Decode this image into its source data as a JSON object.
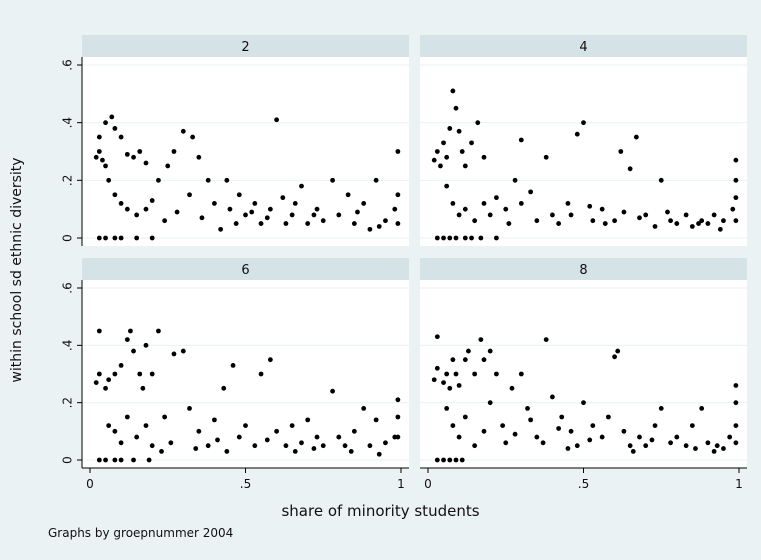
{
  "chart_data": {
    "type": "scatter",
    "xlabel": "share of minority students",
    "ylabel": "within school sd ethnic diversity",
    "note": "Graphs by groepnummer 2004",
    "xlim": [
      0,
      1
    ],
    "ylim": [
      0,
      0.6
    ],
    "xticks": [
      "0",
      ".5",
      "1"
    ],
    "yticks": [
      "0",
      ".2",
      ".4",
      ".6"
    ],
    "grid": true,
    "colors": {
      "background": "#eaf2f3",
      "panel": "#ffffff",
      "strip": "#d5e2e6",
      "marker": "#000000",
      "grid": "#eaf2f3"
    },
    "panels": [
      {
        "label": "2",
        "points": [
          [
            0.02,
            0.28
          ],
          [
            0.03,
            0.3
          ],
          [
            0.04,
            0.27
          ],
          [
            0.05,
            0.25
          ],
          [
            0.03,
            0.35
          ],
          [
            0.05,
            0.4
          ],
          [
            0.07,
            0.42
          ],
          [
            0.08,
            0.38
          ],
          [
            0.1,
            0.35
          ],
          [
            0.12,
            0.29
          ],
          [
            0.14,
            0.28
          ],
          [
            0.16,
            0.3
          ],
          [
            0.18,
            0.26
          ],
          [
            0.06,
            0.2
          ],
          [
            0.08,
            0.15
          ],
          [
            0.1,
            0.12
          ],
          [
            0.12,
            0.1
          ],
          [
            0.15,
            0.08
          ],
          [
            0.18,
            0.1
          ],
          [
            0.2,
            0.13
          ],
          [
            0.22,
            0.2
          ],
          [
            0.25,
            0.25
          ],
          [
            0.27,
            0.3
          ],
          [
            0.3,
            0.37
          ],
          [
            0.33,
            0.35
          ],
          [
            0.35,
            0.28
          ],
          [
            0.38,
            0.2
          ],
          [
            0.4,
            0.12
          ],
          [
            0.45,
            0.1
          ],
          [
            0.48,
            0.15
          ],
          [
            0.5,
            0.08
          ],
          [
            0.53,
            0.12
          ],
          [
            0.55,
            0.05
          ],
          [
            0.58,
            0.1
          ],
          [
            0.6,
            0.41
          ],
          [
            0.62,
            0.14
          ],
          [
            0.65,
            0.08
          ],
          [
            0.68,
            0.18
          ],
          [
            0.7,
            0.05
          ],
          [
            0.73,
            0.1
          ],
          [
            0.75,
            0.06
          ],
          [
            0.78,
            0.2
          ],
          [
            0.8,
            0.08
          ],
          [
            0.83,
            0.15
          ],
          [
            0.85,
            0.05
          ],
          [
            0.88,
            0.12
          ],
          [
            0.9,
            0.03
          ],
          [
            0.92,
            0.2
          ],
          [
            0.95,
            0.06
          ],
          [
            0.98,
            0.1
          ],
          [
            0.99,
            0.3
          ],
          [
            0.99,
            0.15
          ],
          [
            0.99,
            0.05
          ],
          [
            0.03,
            0.0
          ],
          [
            0.05,
            0.0
          ],
          [
            0.08,
            0.0
          ],
          [
            0.1,
            0.0
          ],
          [
            0.15,
            0.0
          ],
          [
            0.2,
            0.0
          ],
          [
            0.42,
            0.03
          ],
          [
            0.47,
            0.05
          ],
          [
            0.52,
            0.09
          ],
          [
            0.57,
            0.07
          ],
          [
            0.63,
            0.05
          ],
          [
            0.24,
            0.06
          ],
          [
            0.28,
            0.09
          ],
          [
            0.32,
            0.15
          ],
          [
            0.36,
            0.07
          ],
          [
            0.44,
            0.2
          ],
          [
            0.66,
            0.12
          ],
          [
            0.72,
            0.08
          ],
          [
            0.86,
            0.09
          ],
          [
            0.93,
            0.04
          ]
        ]
      },
      {
        "label": "4",
        "points": [
          [
            0.02,
            0.27
          ],
          [
            0.03,
            0.3
          ],
          [
            0.04,
            0.25
          ],
          [
            0.05,
            0.33
          ],
          [
            0.06,
            0.28
          ],
          [
            0.07,
            0.38
          ],
          [
            0.08,
            0.51
          ],
          [
            0.09,
            0.45
          ],
          [
            0.1,
            0.37
          ],
          [
            0.11,
            0.3
          ],
          [
            0.12,
            0.25
          ],
          [
            0.14,
            0.33
          ],
          [
            0.16,
            0.4
          ],
          [
            0.18,
            0.28
          ],
          [
            0.06,
            0.18
          ],
          [
            0.08,
            0.12
          ],
          [
            0.1,
            0.08
          ],
          [
            0.12,
            0.1
          ],
          [
            0.15,
            0.06
          ],
          [
            0.18,
            0.12
          ],
          [
            0.2,
            0.08
          ],
          [
            0.22,
            0.14
          ],
          [
            0.25,
            0.1
          ],
          [
            0.28,
            0.2
          ],
          [
            0.3,
            0.34
          ],
          [
            0.33,
            0.16
          ],
          [
            0.35,
            0.06
          ],
          [
            0.38,
            0.28
          ],
          [
            0.4,
            0.08
          ],
          [
            0.45,
            0.12
          ],
          [
            0.48,
            0.36
          ],
          [
            0.5,
            0.4
          ],
          [
            0.53,
            0.06
          ],
          [
            0.56,
            0.1
          ],
          [
            0.6,
            0.06
          ],
          [
            0.62,
            0.3
          ],
          [
            0.65,
            0.24
          ],
          [
            0.67,
            0.35
          ],
          [
            0.7,
            0.08
          ],
          [
            0.73,
            0.04
          ],
          [
            0.75,
            0.2
          ],
          [
            0.78,
            0.06
          ],
          [
            0.8,
            0.05
          ],
          [
            0.83,
            0.08
          ],
          [
            0.85,
            0.04
          ],
          [
            0.88,
            0.06
          ],
          [
            0.9,
            0.05
          ],
          [
            0.92,
            0.08
          ],
          [
            0.95,
            0.06
          ],
          [
            0.98,
            0.1
          ],
          [
            0.99,
            0.27
          ],
          [
            0.99,
            0.2
          ],
          [
            0.99,
            0.14
          ],
          [
            0.99,
            0.06
          ],
          [
            0.03,
            0.0
          ],
          [
            0.05,
            0.0
          ],
          [
            0.07,
            0.0
          ],
          [
            0.09,
            0.0
          ],
          [
            0.12,
            0.0
          ],
          [
            0.14,
            0.0
          ],
          [
            0.17,
            0.0
          ],
          [
            0.22,
            0.0
          ],
          [
            0.26,
            0.05
          ],
          [
            0.3,
            0.12
          ],
          [
            0.42,
            0.05
          ],
          [
            0.46,
            0.08
          ],
          [
            0.52,
            0.11
          ],
          [
            0.57,
            0.05
          ],
          [
            0.63,
            0.09
          ],
          [
            0.68,
            0.07
          ],
          [
            0.77,
            0.09
          ],
          [
            0.87,
            0.05
          ],
          [
            0.94,
            0.03
          ]
        ]
      },
      {
        "label": "6",
        "points": [
          [
            0.02,
            0.27
          ],
          [
            0.03,
            0.3
          ],
          [
            0.03,
            0.45
          ],
          [
            0.05,
            0.25
          ],
          [
            0.06,
            0.28
          ],
          [
            0.08,
            0.3
          ],
          [
            0.1,
            0.33
          ],
          [
            0.12,
            0.42
          ],
          [
            0.13,
            0.45
          ],
          [
            0.14,
            0.38
          ],
          [
            0.16,
            0.3
          ],
          [
            0.17,
            0.25
          ],
          [
            0.18,
            0.4
          ],
          [
            0.2,
            0.3
          ],
          [
            0.22,
            0.45
          ],
          [
            0.06,
            0.12
          ],
          [
            0.08,
            0.1
          ],
          [
            0.1,
            0.06
          ],
          [
            0.12,
            0.15
          ],
          [
            0.15,
            0.08
          ],
          [
            0.18,
            0.12
          ],
          [
            0.2,
            0.05
          ],
          [
            0.24,
            0.15
          ],
          [
            0.27,
            0.37
          ],
          [
            0.3,
            0.38
          ],
          [
            0.32,
            0.18
          ],
          [
            0.35,
            0.1
          ],
          [
            0.38,
            0.05
          ],
          [
            0.4,
            0.14
          ],
          [
            0.43,
            0.25
          ],
          [
            0.46,
            0.33
          ],
          [
            0.48,
            0.08
          ],
          [
            0.5,
            0.12
          ],
          [
            0.53,
            0.05
          ],
          [
            0.55,
            0.3
          ],
          [
            0.58,
            0.35
          ],
          [
            0.6,
            0.1
          ],
          [
            0.63,
            0.05
          ],
          [
            0.65,
            0.12
          ],
          [
            0.68,
            0.06
          ],
          [
            0.7,
            0.14
          ],
          [
            0.73,
            0.08
          ],
          [
            0.75,
            0.05
          ],
          [
            0.78,
            0.24
          ],
          [
            0.8,
            0.08
          ],
          [
            0.82,
            0.05
          ],
          [
            0.85,
            0.1
          ],
          [
            0.88,
            0.18
          ],
          [
            0.9,
            0.05
          ],
          [
            0.92,
            0.14
          ],
          [
            0.95,
            0.06
          ],
          [
            0.98,
            0.08
          ],
          [
            0.99,
            0.21
          ],
          [
            0.99,
            0.15
          ],
          [
            0.99,
            0.08
          ],
          [
            0.03,
            0.0
          ],
          [
            0.05,
            0.0
          ],
          [
            0.08,
            0.0
          ],
          [
            0.1,
            0.0
          ],
          [
            0.14,
            0.0
          ],
          [
            0.19,
            0.0
          ],
          [
            0.23,
            0.03
          ],
          [
            0.26,
            0.06
          ],
          [
            0.34,
            0.04
          ],
          [
            0.41,
            0.07
          ],
          [
            0.44,
            0.03
          ],
          [
            0.57,
            0.07
          ],
          [
            0.66,
            0.03
          ],
          [
            0.72,
            0.04
          ],
          [
            0.84,
            0.03
          ],
          [
            0.93,
            0.02
          ]
        ]
      },
      {
        "label": "8",
        "points": [
          [
            0.02,
            0.28
          ],
          [
            0.03,
            0.32
          ],
          [
            0.03,
            0.43
          ],
          [
            0.05,
            0.27
          ],
          [
            0.06,
            0.3
          ],
          [
            0.07,
            0.25
          ],
          [
            0.08,
            0.35
          ],
          [
            0.09,
            0.3
          ],
          [
            0.1,
            0.26
          ],
          [
            0.12,
            0.35
          ],
          [
            0.13,
            0.38
          ],
          [
            0.15,
            0.3
          ],
          [
            0.17,
            0.42
          ],
          [
            0.18,
            0.35
          ],
          [
            0.2,
            0.38
          ],
          [
            0.22,
            0.3
          ],
          [
            0.06,
            0.18
          ],
          [
            0.08,
            0.12
          ],
          [
            0.1,
            0.08
          ],
          [
            0.12,
            0.15
          ],
          [
            0.15,
            0.05
          ],
          [
            0.18,
            0.1
          ],
          [
            0.2,
            0.2
          ],
          [
            0.24,
            0.12
          ],
          [
            0.27,
            0.25
          ],
          [
            0.3,
            0.3
          ],
          [
            0.32,
            0.18
          ],
          [
            0.35,
            0.08
          ],
          [
            0.38,
            0.42
          ],
          [
            0.4,
            0.22
          ],
          [
            0.43,
            0.15
          ],
          [
            0.46,
            0.1
          ],
          [
            0.48,
            0.05
          ],
          [
            0.5,
            0.2
          ],
          [
            0.53,
            0.12
          ],
          [
            0.56,
            0.08
          ],
          [
            0.6,
            0.36
          ],
          [
            0.61,
            0.38
          ],
          [
            0.63,
            0.1
          ],
          [
            0.65,
            0.05
          ],
          [
            0.68,
            0.08
          ],
          [
            0.7,
            0.05
          ],
          [
            0.73,
            0.12
          ],
          [
            0.75,
            0.18
          ],
          [
            0.78,
            0.06
          ],
          [
            0.8,
            0.08
          ],
          [
            0.83,
            0.05
          ],
          [
            0.85,
            0.12
          ],
          [
            0.88,
            0.18
          ],
          [
            0.9,
            0.06
          ],
          [
            0.93,
            0.05
          ],
          [
            0.95,
            0.04
          ],
          [
            0.97,
            0.08
          ],
          [
            0.99,
            0.26
          ],
          [
            0.99,
            0.2
          ],
          [
            0.99,
            0.12
          ],
          [
            0.99,
            0.06
          ],
          [
            0.03,
            0.0
          ],
          [
            0.05,
            0.0
          ],
          [
            0.07,
            0.0
          ],
          [
            0.09,
            0.0
          ],
          [
            0.11,
            0.0
          ],
          [
            0.25,
            0.06
          ],
          [
            0.28,
            0.09
          ],
          [
            0.33,
            0.14
          ],
          [
            0.37,
            0.06
          ],
          [
            0.42,
            0.11
          ],
          [
            0.45,
            0.04
          ],
          [
            0.52,
            0.07
          ],
          [
            0.58,
            0.15
          ],
          [
            0.66,
            0.03
          ],
          [
            0.72,
            0.07
          ],
          [
            0.86,
            0.04
          ],
          [
            0.92,
            0.03
          ]
        ]
      }
    ]
  }
}
